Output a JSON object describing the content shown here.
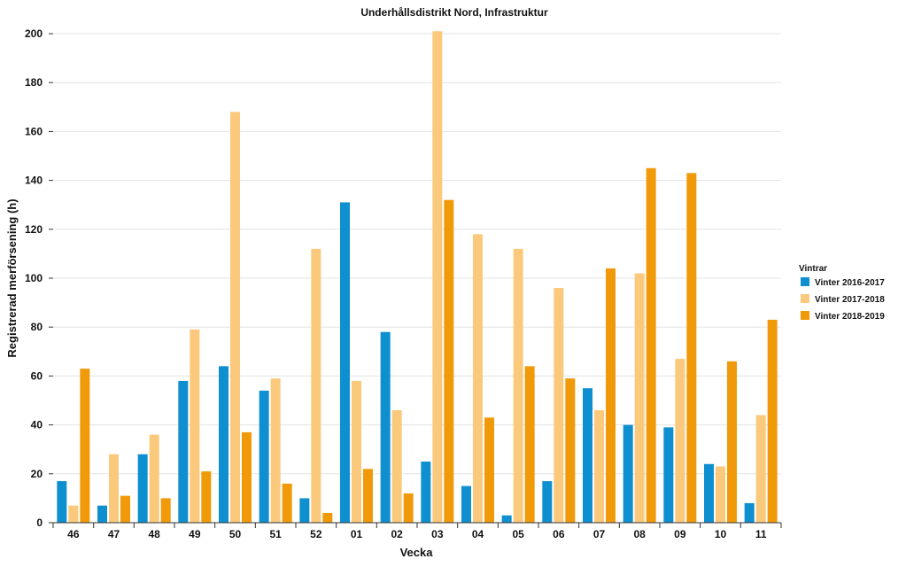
{
  "chart_data": {
    "type": "bar",
    "title": "Underhållsdistrikt Nord, Infrastruktur",
    "xlabel": "Vecka",
    "ylabel": "Registrerad merförsening (h)",
    "ylim": [
      0,
      200
    ],
    "yticks": [
      0,
      20,
      40,
      60,
      80,
      100,
      120,
      140,
      160,
      180,
      200
    ],
    "grid": true,
    "legend_position": "right",
    "legend_title": "Vintrar",
    "categories": [
      "46",
      "47",
      "48",
      "49",
      "50",
      "51",
      "52",
      "01",
      "02",
      "03",
      "04",
      "05",
      "06",
      "07",
      "08",
      "09",
      "10",
      "11"
    ],
    "series": [
      {
        "name": "Vinter 2016-2017",
        "color": "#0e8fcf",
        "values": [
          17,
          7,
          28,
          58,
          64,
          54,
          10,
          131,
          78,
          25,
          15,
          3,
          17,
          55,
          40,
          39,
          24,
          8
        ]
      },
      {
        "name": "Vinter 2017-2018",
        "color": "#fbc97c",
        "values": [
          7,
          28,
          36,
          79,
          168,
          59,
          112,
          58,
          46,
          202,
          118,
          112,
          96,
          46,
          102,
          67,
          23,
          44
        ]
      },
      {
        "name": "Vinter 2018-2019",
        "color": "#f09a0a",
        "values": [
          63,
          11,
          10,
          21,
          37,
          16,
          4,
          22,
          12,
          132,
          43,
          64,
          59,
          104,
          145,
          143,
          66,
          83
        ]
      }
    ]
  }
}
